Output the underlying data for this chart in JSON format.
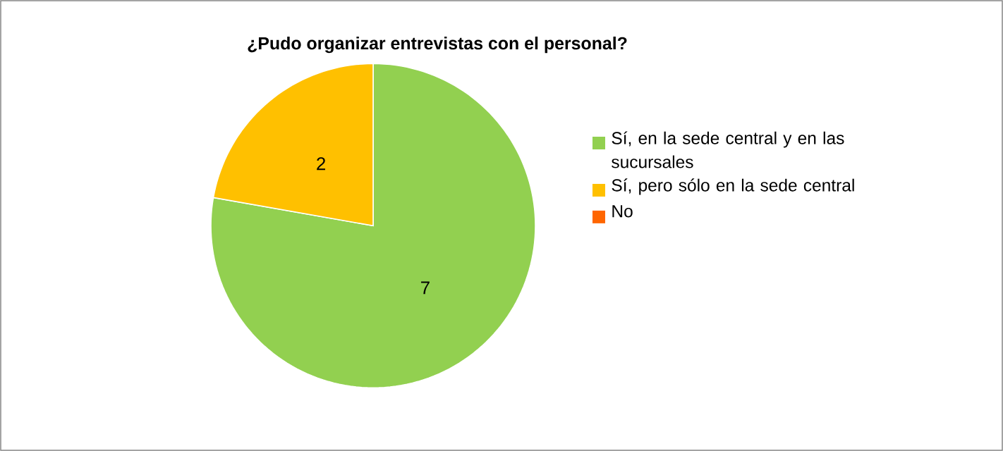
{
  "chart_data": {
    "type": "pie",
    "title": "¿Pudo organizar entrevistas con el personal?",
    "categories": [
      "Sí, en la sede central y en las sucursales",
      "Sí, pero sólo en la sede central",
      "No"
    ],
    "values": [
      7,
      2,
      0
    ],
    "colors": [
      "#92d050",
      "#ffc000",
      "#ff6600"
    ],
    "value_labels": [
      "7",
      "2",
      null
    ],
    "legend": "right"
  }
}
